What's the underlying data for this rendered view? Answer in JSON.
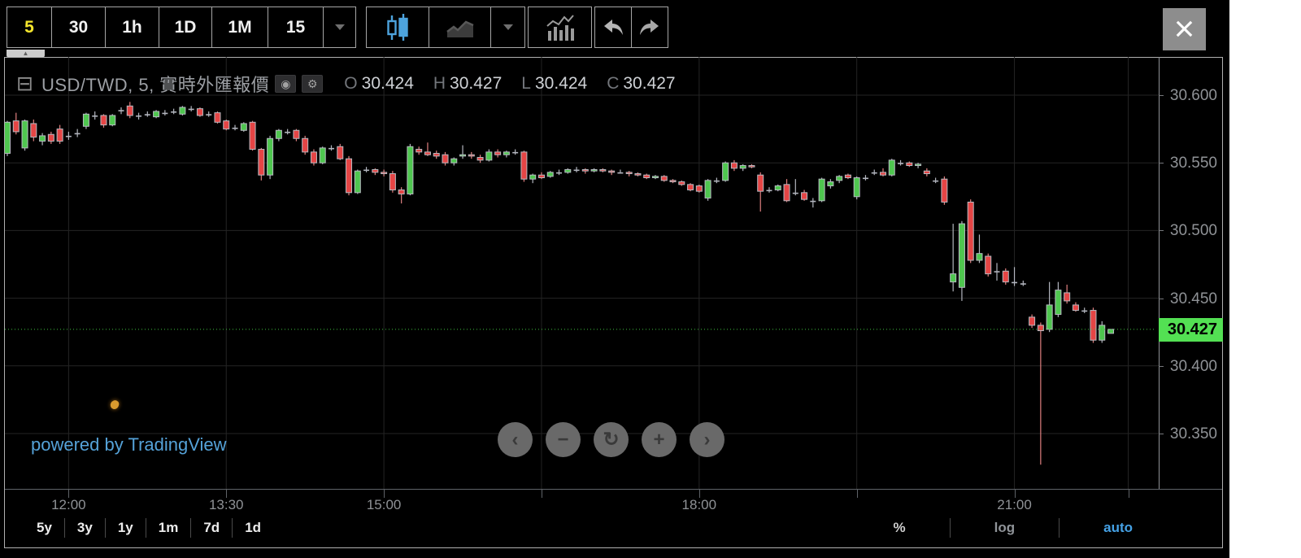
{
  "toolbar": {
    "intervals": [
      {
        "label": "5",
        "active": true
      },
      {
        "label": "30",
        "active": false
      },
      {
        "label": "1h",
        "active": false
      },
      {
        "label": "1D",
        "active": false
      },
      {
        "label": "1M",
        "active": false
      },
      {
        "label": "15",
        "active": false
      }
    ],
    "interval_dropdown_icon": "chevron-down-icon",
    "style_buttons": [
      {
        "icon": "candlestick-chart-icon",
        "active": true
      },
      {
        "icon": "line-chart-icon",
        "active": false
      },
      {
        "icon": "chevron-down-icon",
        "active": false
      }
    ],
    "indicators_icon": "indicators-bars-icon",
    "undo_icon": "undo-curved-arrow-icon",
    "redo_icon": "redo-curved-arrow-icon",
    "close_label": "×"
  },
  "legend": {
    "collapse_icon": "⊟",
    "symbol_title": "USD/TWD, 5, 實時外匯報價",
    "toggle_icon": "◉",
    "gear_icon": "⚙",
    "ohlc": [
      {
        "letter": "O",
        "value": "30.424"
      },
      {
        "letter": "H",
        "value": "30.427"
      },
      {
        "letter": "L",
        "value": "30.424"
      },
      {
        "letter": "C",
        "value": "30.427"
      }
    ]
  },
  "price_axis": {
    "ticks": [
      "30.600",
      "30.550",
      "30.500",
      "30.450",
      "30.400",
      "30.350"
    ],
    "current_price": "30.427"
  },
  "time_axis": {
    "labeled_ticks": [
      {
        "index": 7,
        "label": "12:00"
      },
      {
        "index": 25,
        "label": "13:30"
      },
      {
        "index": 43,
        "label": "15:00"
      },
      {
        "index": 79,
        "label": "18:00"
      },
      {
        "index": 115,
        "label": "21:00"
      }
    ],
    "unlabeled_tick_indexes": [
      61,
      97,
      128
    ]
  },
  "bottom_toolbar": {
    "ranges": [
      "5y",
      "3y",
      "1y",
      "1m",
      "7d",
      "1d"
    ],
    "percent_label": "%",
    "log_label": "log",
    "auto_label": "auto"
  },
  "nav_buttons": [
    {
      "name": "pan-left-button",
      "glyph": "‹"
    },
    {
      "name": "zoom-out-button",
      "glyph": "−"
    },
    {
      "name": "reset-view-button",
      "glyph": "↻"
    },
    {
      "name": "zoom-in-button",
      "glyph": "+"
    },
    {
      "name": "pan-right-button",
      "glyph": "›"
    }
  ],
  "footer": {
    "powered_by": "powered by TradingView"
  },
  "tab_arrow": "▲",
  "colors": {
    "up_green": "#4fc64f",
    "down_red": "#e54545",
    "doji_gray": "#b2b5be",
    "body_border": "#b7bbc2",
    "red_wick": "#e08080",
    "grid": "#242424",
    "price_line_green": "#3fbf3f",
    "price_label_bg": "#53e053",
    "active_interval_yellow": "#f5e62d",
    "candle_icon_blue": "#4da3dd",
    "auto_blue": "#45a1e5",
    "link_blue": "#55a2d8"
  },
  "chart_data": {
    "type": "candlestick",
    "symbol": "USD/TWD",
    "interval": "5",
    "description": "實時外匯報價",
    "legend_ohlc": {
      "open": 30.424,
      "high": 30.427,
      "low": 30.424,
      "close": 30.427
    },
    "current_price": 30.427,
    "start_time": "11:25",
    "interval_minutes": 5,
    "price_ticks": [
      30.6,
      30.55,
      30.5,
      30.45,
      30.4,
      30.35
    ],
    "time_labels": [
      "12:00",
      "13:30",
      "15:00",
      "18:00",
      "21:00"
    ],
    "visible_price_range": [
      30.327,
      30.6
    ],
    "grid": true,
    "candles_ohlc": [
      [
        30.557,
        30.581,
        30.555,
        30.58
      ],
      [
        30.581,
        30.587,
        30.571,
        30.573
      ],
      [
        30.561,
        30.582,
        30.559,
        30.581
      ],
      [
        30.579,
        30.582,
        30.566,
        30.569
      ],
      [
        30.566,
        30.572,
        30.563,
        30.57
      ],
      [
        30.571,
        30.573,
        30.564,
        30.566
      ],
      [
        30.575,
        30.578,
        30.564,
        30.566
      ],
      [
        30.57,
        30.573,
        30.567,
        30.57
      ],
      [
        30.572,
        30.575,
        30.569,
        30.572
      ],
      [
        30.577,
        30.587,
        30.575,
        30.586
      ],
      [
        30.585,
        30.588,
        30.582,
        30.585
      ],
      [
        30.585,
        30.586,
        30.576,
        30.578
      ],
      [
        30.578,
        30.586,
        30.577,
        30.585
      ],
      [
        30.589,
        30.591,
        30.586,
        30.589
      ],
      [
        30.592,
        30.595,
        30.583,
        30.585
      ],
      [
        30.585,
        30.587,
        30.582,
        30.585
      ],
      [
        30.586,
        30.588,
        30.584,
        30.586
      ],
      [
        30.584,
        30.589,
        30.583,
        30.588
      ],
      [
        30.587,
        30.589,
        30.585,
        30.587
      ],
      [
        30.588,
        30.59,
        30.586,
        30.588
      ],
      [
        30.586,
        30.592,
        30.585,
        30.591
      ],
      [
        30.59,
        30.592,
        30.588,
        30.59
      ],
      [
        30.59,
        30.591,
        30.584,
        30.585
      ],
      [
        30.586,
        30.588,
        30.584,
        30.586
      ],
      [
        30.587,
        30.588,
        30.579,
        30.58
      ],
      [
        30.581,
        30.582,
        30.574,
        30.575
      ],
      [
        30.576,
        30.578,
        30.574,
        30.576
      ],
      [
        30.574,
        30.58,
        30.573,
        30.579
      ],
      [
        30.58,
        30.581,
        30.559,
        30.56
      ],
      [
        30.56,
        30.561,
        30.537,
        30.541
      ],
      [
        30.541,
        30.57,
        30.538,
        30.568
      ],
      [
        30.568,
        30.575,
        30.566,
        30.574
      ],
      [
        30.573,
        30.575,
        30.571,
        30.573
      ],
      [
        30.574,
        30.575,
        30.566,
        30.568
      ],
      [
        30.568,
        30.57,
        30.556,
        30.558
      ],
      [
        30.558,
        30.56,
        30.548,
        30.55
      ],
      [
        30.55,
        30.562,
        30.549,
        30.561
      ],
      [
        30.561,
        30.563,
        30.559,
        30.561
      ],
      [
        30.562,
        30.564,
        30.552,
        30.553
      ],
      [
        30.553,
        30.555,
        30.526,
        30.528
      ],
      [
        30.528,
        30.545,
        30.527,
        30.544
      ],
      [
        30.545,
        30.547,
        30.543,
        30.545
      ],
      [
        30.545,
        30.546,
        30.541,
        30.543
      ],
      [
        30.543,
        30.545,
        30.54,
        30.542
      ],
      [
        30.542,
        30.544,
        30.528,
        30.53
      ],
      [
        30.53,
        30.532,
        30.52,
        30.527
      ],
      [
        30.527,
        30.564,
        30.526,
        30.562
      ],
      [
        30.56,
        30.562,
        30.556,
        30.558
      ],
      [
        30.558,
        30.565,
        30.555,
        30.556
      ],
      [
        30.557,
        30.559,
        30.553,
        30.555
      ],
      [
        30.556,
        30.558,
        30.548,
        30.55
      ],
      [
        30.55,
        30.554,
        30.548,
        30.553
      ],
      [
        30.555,
        30.563,
        30.553,
        30.556
      ],
      [
        30.556,
        30.558,
        30.553,
        30.555
      ],
      [
        30.554,
        30.556,
        30.55,
        30.552
      ],
      [
        30.552,
        30.56,
        30.551,
        30.558
      ],
      [
        30.558,
        30.56,
        30.554,
        30.556
      ],
      [
        30.556,
        30.559,
        30.554,
        30.558
      ],
      [
        30.558,
        30.56,
        30.556,
        30.558
      ],
      [
        30.558,
        30.559,
        30.536,
        30.538
      ],
      [
        30.538,
        30.542,
        30.535,
        30.541
      ],
      [
        30.541,
        30.543,
        30.538,
        30.539
      ],
      [
        30.54,
        30.544,
        30.539,
        30.543
      ],
      [
        30.543,
        30.545,
        30.541,
        30.543
      ],
      [
        30.543,
        30.546,
        30.542,
        30.545
      ],
      [
        30.545,
        30.547,
        30.543,
        30.545
      ],
      [
        30.545,
        30.546,
        30.542,
        30.544
      ],
      [
        30.544,
        30.546,
        30.543,
        30.545
      ],
      [
        30.545,
        30.546,
        30.543,
        30.544
      ],
      [
        30.544,
        30.545,
        30.541,
        30.543
      ],
      [
        30.543,
        30.545,
        30.542,
        30.543
      ],
      [
        30.543,
        30.544,
        30.54,
        30.542
      ],
      [
        30.542,
        30.543,
        30.54,
        30.541
      ],
      [
        30.541,
        30.542,
        30.538,
        30.539
      ],
      [
        30.539,
        30.541,
        30.538,
        30.54
      ],
      [
        30.54,
        30.541,
        30.536,
        30.537
      ],
      [
        30.537,
        30.538,
        30.535,
        30.536
      ],
      [
        30.536,
        30.537,
        30.533,
        30.534
      ],
      [
        30.534,
        30.535,
        30.529,
        30.53
      ],
      [
        30.533,
        30.534,
        30.528,
        30.529
      ],
      [
        30.524,
        30.538,
        30.522,
        30.537
      ],
      [
        30.537,
        30.539,
        30.535,
        30.537
      ],
      [
        30.537,
        30.551,
        30.536,
        30.55
      ],
      [
        30.55,
        30.552,
        30.544,
        30.546
      ],
      [
        30.546,
        30.549,
        30.544,
        30.548
      ],
      [
        30.548,
        30.549,
        30.546,
        30.547
      ],
      [
        30.541,
        30.543,
        30.514,
        30.529
      ],
      [
        30.53,
        30.532,
        30.528,
        30.53
      ],
      [
        30.53,
        30.534,
        30.529,
        30.533
      ],
      [
        30.534,
        30.538,
        30.521,
        30.522
      ],
      [
        30.528,
        30.538,
        30.526,
        30.528
      ],
      [
        30.528,
        30.53,
        30.522,
        30.523
      ],
      [
        30.522,
        30.524,
        30.517,
        30.522
      ],
      [
        30.522,
        30.539,
        30.521,
        30.538
      ],
      [
        30.533,
        30.538,
        30.531,
        30.536
      ],
      [
        30.537,
        30.541,
        30.535,
        30.54
      ],
      [
        30.541,
        30.542,
        30.538,
        30.539
      ],
      [
        30.525,
        30.54,
        30.523,
        30.539
      ],
      [
        30.539,
        30.541,
        30.537,
        30.539
      ],
      [
        30.543,
        30.545,
        30.541,
        30.543
      ],
      [
        30.543,
        30.546,
        30.54,
        30.541
      ],
      [
        30.541,
        30.553,
        30.54,
        30.552
      ],
      [
        30.55,
        30.552,
        30.548,
        30.55
      ],
      [
        30.55,
        30.551,
        30.547,
        30.548
      ],
      [
        30.548,
        30.55,
        30.546,
        30.549
      ],
      [
        30.544,
        30.546,
        30.54,
        30.542
      ],
      [
        30.537,
        30.539,
        30.535,
        30.537
      ],
      [
        30.538,
        30.54,
        30.519,
        30.521
      ],
      [
        30.462,
        30.505,
        30.455,
        30.468
      ],
      [
        30.458,
        30.507,
        30.448,
        30.505
      ],
      [
        30.521,
        30.523,
        30.476,
        30.478
      ],
      [
        30.478,
        30.497,
        30.476,
        30.483
      ],
      [
        30.481,
        30.483,
        30.466,
        30.468
      ],
      [
        30.47,
        30.476,
        30.463,
        30.47
      ],
      [
        30.47,
        30.472,
        30.46,
        30.462
      ],
      [
        30.462,
        30.473,
        30.459,
        30.462
      ],
      [
        30.461,
        30.463,
        30.459,
        30.461
      ],
      [
        30.436,
        30.438,
        30.428,
        30.43
      ],
      [
        30.43,
        30.432,
        30.327,
        30.426
      ],
      [
        30.427,
        30.462,
        30.425,
        30.445
      ],
      [
        30.438,
        30.462,
        30.436,
        30.456
      ],
      [
        30.454,
        30.46,
        30.446,
        30.448
      ],
      [
        30.445,
        30.447,
        30.44,
        30.441
      ],
      [
        30.441,
        30.443,
        30.439,
        30.441
      ],
      [
        30.441,
        30.443,
        30.417,
        30.419
      ],
      [
        30.419,
        30.433,
        30.417,
        30.43
      ],
      [
        30.424,
        30.427,
        30.424,
        30.427
      ]
    ]
  }
}
